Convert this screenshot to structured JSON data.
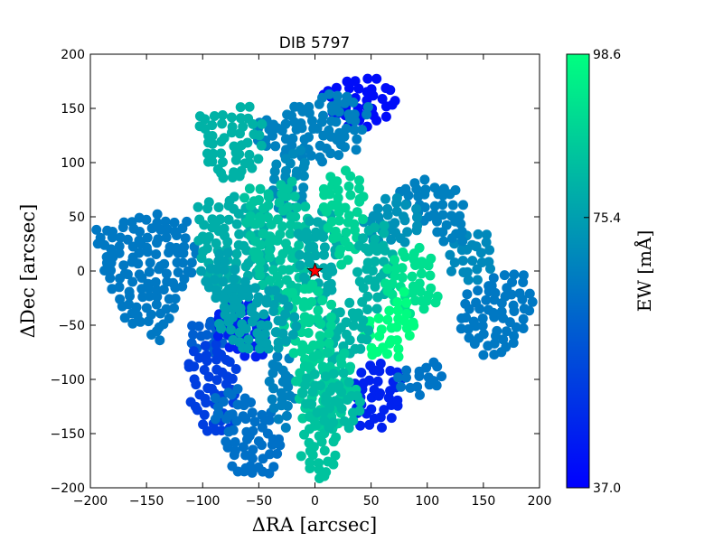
{
  "chart_data": {
    "type": "scatter",
    "title": "DIB 5797",
    "xlabel": "ΔRA [arcsec]",
    "ylabel": "ΔDec [arcsec]",
    "xlim": [
      -200,
      200
    ],
    "ylim": [
      -200,
      200
    ],
    "xticks": [
      -200,
      -150,
      -100,
      -50,
      0,
      50,
      100,
      150,
      200
    ],
    "yticks": [
      -200,
      -150,
      -100,
      -50,
      0,
      50,
      100,
      150,
      200
    ],
    "xtick_labels": [
      "−200",
      "−150",
      "−100",
      "−50",
      "0",
      "50",
      "100",
      "150",
      "200"
    ],
    "ytick_labels": [
      "−200",
      "−150",
      "−100",
      "−50",
      "0",
      "50",
      "100",
      "150",
      "200"
    ],
    "grid": false,
    "colormap": "winter",
    "color_min": "#0000ff",
    "color_max": "#00ff80",
    "colorbar": {
      "label": "EW [mÅ]",
      "min": 37.0,
      "max": 98.6,
      "ticks": [
        37.0,
        75.4,
        98.6
      ],
      "tick_labels": [
        "37.0",
        "75.4",
        "98.6"
      ]
    },
    "marker": {
      "x": 0,
      "y": 0,
      "symbol": "star",
      "color": "#ff0000"
    },
    "regions": [
      {
        "x": [
          345,
          412,
          440,
          432,
          408,
          376,
          362
        ],
        "y": [
          165,
          185,
          160,
          145,
          128,
          135,
          152
        ],
        "ew": 40
      },
      {
        "x": [
          285,
          345,
          395,
          410,
          372,
          335,
          305,
          275
        ],
        "y": [
          115,
          98,
          110,
          152,
          168,
          160,
          145,
          135
        ],
        "ew": 68
      },
      {
        "x": [
          218,
          278,
          300,
          278,
          245,
          228
        ],
        "y": [
          143,
          155,
          130,
          88,
          85,
          100
        ],
        "ew": 80
      },
      {
        "x": [
          105,
          168,
          210,
          222,
          200,
          178,
          140,
          112
        ],
        "y": [
          38,
          55,
          48,
          10,
          -25,
          -65,
          -55,
          5
        ],
        "ew": 66
      },
      {
        "x": [
          298,
          338,
          342,
          318,
          295
        ],
        "y": [
          98,
          115,
          58,
          45,
          72
        ],
        "ew": 70
      },
      {
        "x": [
          200,
          270,
          278,
          262,
          228,
          210
        ],
        "y": [
          -50,
          -35,
          -15,
          -65,
          -85,
          -70
        ],
        "ew": 60
      },
      {
        "x": [
          208,
          236,
          262,
          260,
          230,
          210
        ],
        "y": [
          -75,
          -58,
          -90,
          -145,
          -155,
          -120
        ],
        "ew": 52
      },
      {
        "x": [
          230,
          265,
          300,
          315,
          290,
          258
        ],
        "y": [
          -120,
          -100,
          -130,
          -170,
          -195,
          -185
        ],
        "ew": 64
      },
      {
        "x": [
          290,
          318,
          330,
          322,
          300
        ],
        "y": [
          -85,
          -70,
          -110,
          -150,
          -130
        ],
        "ew": 68
      },
      {
        "x": [
          232,
          262,
          290,
          300,
          290,
          262,
          240
        ],
        "y": [
          -35,
          -20,
          -30,
          -60,
          -85,
          -80,
          -60
        ],
        "ew": 45
      },
      {
        "x": [
          392,
          422,
          450,
          448,
          418,
          396
        ],
        "y": [
          -95,
          -82,
          -92,
          -125,
          -150,
          -145
        ],
        "ew": 45
      },
      {
        "x": [
          432,
          478,
          502,
          470,
          448
        ],
        "y": [
          -95,
          -80,
          -100,
          -115,
          -115
        ],
        "ew": 65
      },
      {
        "x": [
          508,
          548,
          580,
          592,
          575,
          540,
          510
        ],
        "y": [
          -20,
          -5,
          0,
          -30,
          -65,
          -85,
          -60
        ],
        "ew": 66
      },
      {
        "x": [
          490,
          515,
          540,
          548,
          525,
          500
        ],
        "y": [
          20,
          40,
          35,
          5,
          -15,
          -5
        ],
        "ew": 70
      },
      {
        "x": [
          432,
          472,
          505,
          518,
          510,
          480,
          450
        ],
        "y": [
          75,
          88,
          80,
          50,
          20,
          30,
          55
        ],
        "ew": 68
      },
      {
        "x": [
          400,
          430,
          460,
          470,
          445,
          410
        ],
        "y": [
          50,
          70,
          65,
          40,
          20,
          25
        ],
        "ew": 72
      },
      {
        "x": [
          212,
          260,
          298,
          310,
          280,
          240,
          220
        ],
        "y": [
          60,
          70,
          55,
          5,
          -20,
          -30,
          10
        ],
        "ew": 79
      },
      {
        "x": [
          270,
          320,
          340,
          350,
          330,
          300,
          272
        ],
        "y": [
          75,
          88,
          62,
          10,
          -25,
          -30,
          20
        ],
        "ew": 84
      },
      {
        "x": [
          330,
          365,
          380,
          375,
          350,
          330
        ],
        "y": [
          45,
          60,
          30,
          -15,
          -35,
          -5
        ],
        "ew": 78
      },
      {
        "x": [
          355,
          390,
          405,
          400,
          378,
          358
        ],
        "y": [
          85,
          100,
          70,
          20,
          5,
          35
        ],
        "ew": 88
      },
      {
        "x": [
          396,
          425,
          440,
          430,
          410,
          395
        ],
        "y": [
          35,
          45,
          10,
          -30,
          -40,
          -5
        ],
        "ew": 80
      },
      {
        "x": [
          428,
          462,
          480,
          490,
          470,
          440,
          426
        ],
        "y": [
          12,
          25,
          10,
          -20,
          -45,
          -40,
          -15
        ],
        "ew": 91
      },
      {
        "x": [
          400,
          430,
          450,
          460,
          440,
          412,
          400
        ],
        "y": [
          -42,
          -35,
          -15,
          -50,
          -82,
          -85,
          -60
        ],
        "ew": 98
      },
      {
        "x": [
          350,
          378,
          405,
          412,
          395,
          368,
          352
        ],
        "y": [
          -45,
          -30,
          -25,
          -55,
          -80,
          -85,
          -70
        ],
        "ew": 80
      },
      {
        "x": [
          305,
          345,
          372,
          375,
          355,
          320,
          305
        ],
        "y": [
          -20,
          -5,
          -30,
          -70,
          -90,
          -80,
          -55
        ],
        "ew": 88
      },
      {
        "x": [
          328,
          360,
          388,
          395,
          380,
          350,
          325
        ],
        "y": [
          -85,
          -70,
          -75,
          -110,
          -140,
          -150,
          -130
        ],
        "ew": 86
      },
      {
        "x": [
          338,
          368,
          378,
          370,
          345,
          330
        ],
        "y": [
          -130,
          -125,
          -150,
          -185,
          -200,
          -170
        ],
        "ew": 84
      },
      {
        "x": [
          328,
          358,
          386,
          404,
          390,
          360,
          335
        ],
        "y": [
          -100,
          -90,
          -95,
          -130,
          -145,
          -145,
          -120
        ],
        "ew": 82
      },
      {
        "x": [
          240,
          290,
          320,
          330,
          300,
          262,
          236
        ],
        "y": [
          -20,
          -10,
          -20,
          -55,
          -80,
          -75,
          -45
        ],
        "ew": 76
      },
      {
        "x": [
          220,
          248,
          270,
          275,
          255,
          230
        ],
        "y": [
          0,
          20,
          5,
          -30,
          -40,
          -20
        ],
        "ew": 76
      }
    ]
  }
}
